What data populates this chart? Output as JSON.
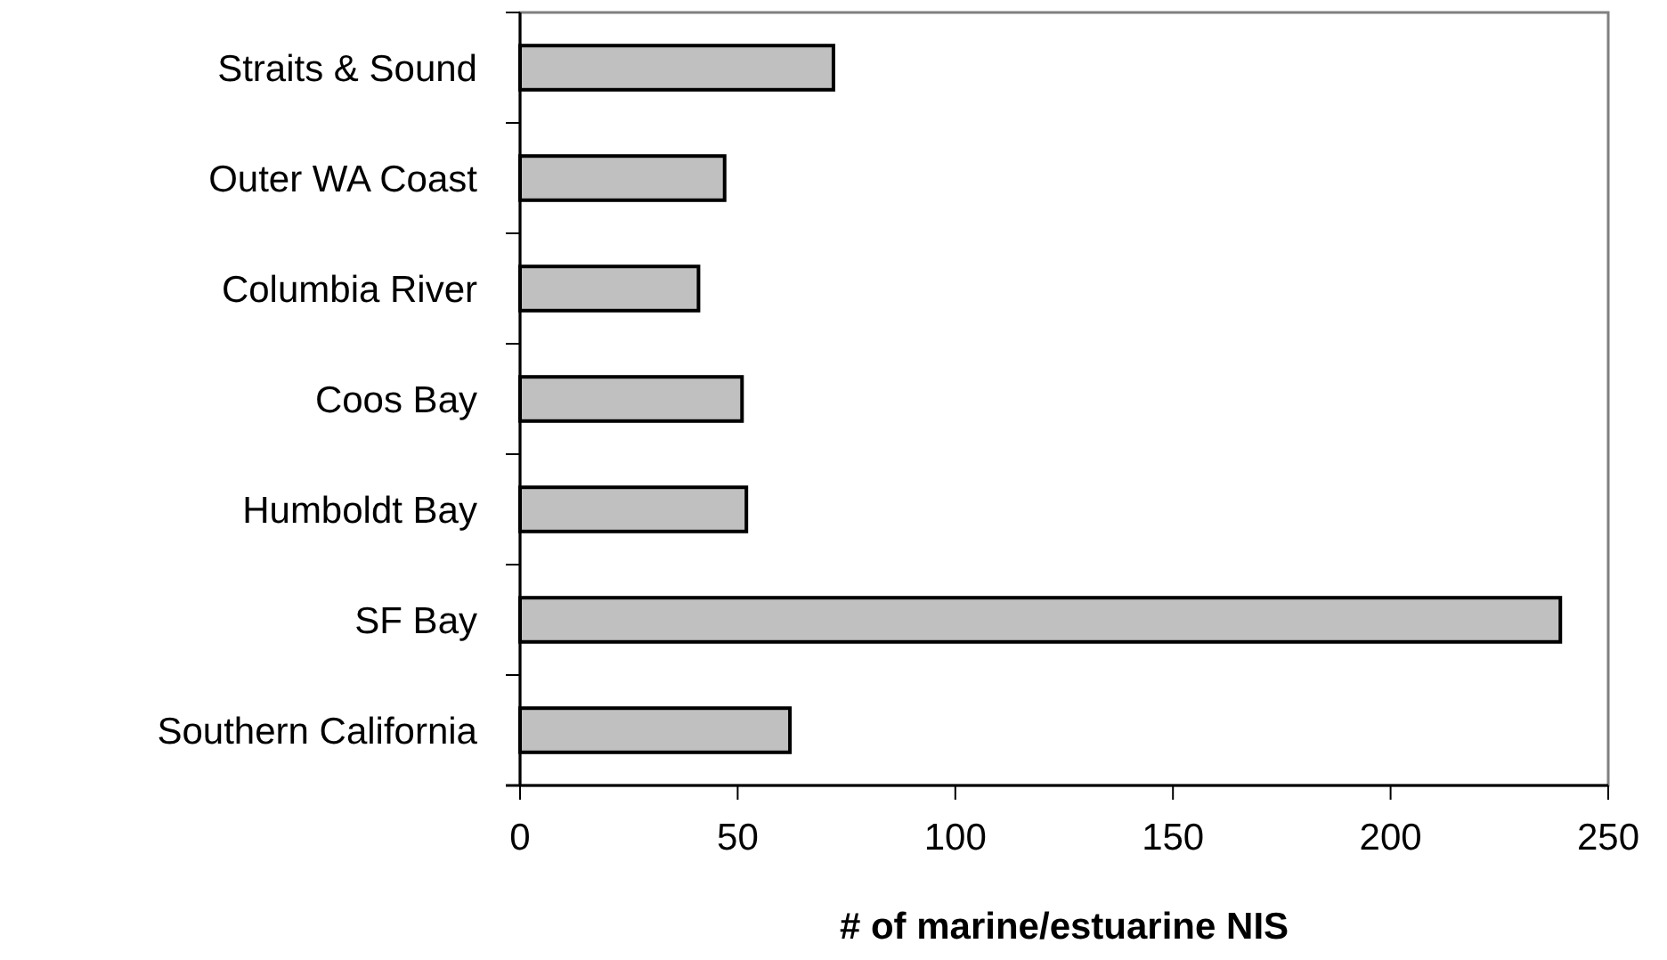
{
  "chart_data": {
    "type": "bar",
    "orientation": "horizontal",
    "xlabel": "# of marine/estuarine NIS",
    "categories": [
      "Straits & Sound",
      "Outer WA Coast",
      "Columbia River",
      "Coos Bay",
      "Humboldt Bay",
      "SF Bay",
      "Southern California"
    ],
    "values": [
      72,
      47,
      41,
      51,
      52,
      239,
      62
    ],
    "color": "#c0c0c0",
    "xlim": [
      0,
      250
    ],
    "xticks": [
      0,
      50,
      100,
      150,
      200,
      250
    ],
    "grid": false
  }
}
